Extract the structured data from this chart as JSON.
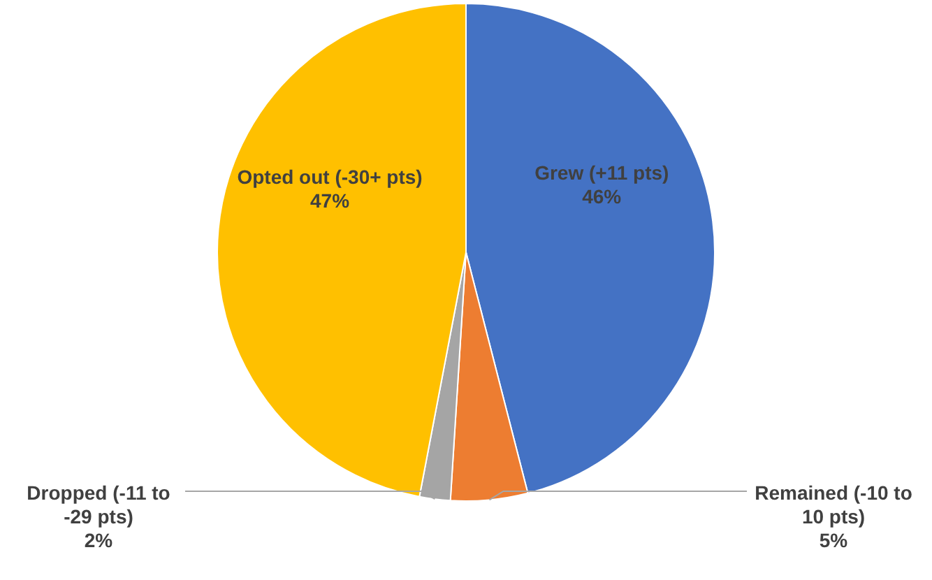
{
  "chart_data": {
    "type": "pie",
    "categories": [
      "Grew (+11 pts)",
      "Remained (-10 to 10 pts)",
      "Dropped (-11 to -29 pts)",
      "Opted out (-30+ pts)"
    ],
    "values": [
      46,
      5,
      2,
      47
    ],
    "colors": [
      "#4472c4",
      "#ed7d31",
      "#a5a5a5",
      "#ffc000"
    ],
    "value_labels": [
      "46%",
      "5%",
      "2%",
      "47%"
    ],
    "legend": false
  }
}
